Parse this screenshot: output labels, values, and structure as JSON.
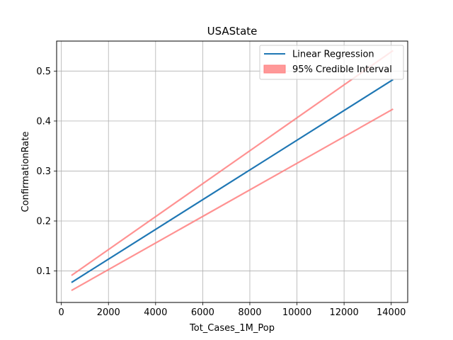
{
  "chart_data": {
    "type": "line",
    "title": "USAState",
    "xlabel": "Tot_Cases_1M_Pop",
    "ylabel": "ConfirmationRate",
    "xlim": [
      -200,
      14700
    ],
    "ylim": [
      0.037,
      0.56
    ],
    "xticks": [
      0,
      2000,
      4000,
      6000,
      8000,
      10000,
      12000,
      14000
    ],
    "xtick_labels": [
      "0",
      "2000",
      "4000",
      "6000",
      "8000",
      "10000",
      "12000",
      "14000"
    ],
    "yticks": [
      0.1,
      0.2,
      0.3,
      0.4,
      0.5
    ],
    "ytick_labels": [
      "0.1",
      "0.2",
      "0.3",
      "0.4",
      "0.5"
    ],
    "grid": true,
    "legend_position": "top-right",
    "series": [
      {
        "name": "Linear Regression",
        "color": "#1f77b4",
        "x": [
          430,
          14080
        ],
        "y": [
          0.077,
          0.483
        ]
      },
      {
        "name": "95% Credible Interval",
        "color": "#ff7f7f",
        "upper": {
          "x": [
            430,
            14080
          ],
          "y": [
            0.091,
            0.541
          ]
        },
        "lower": {
          "x": [
            430,
            14080
          ],
          "y": [
            0.061,
            0.424
          ]
        }
      }
    ],
    "legend": [
      {
        "label": "Linear Regression",
        "kind": "line",
        "color": "#1f77b4"
      },
      {
        "label": "95% Credible Interval",
        "kind": "patch",
        "color": "#ff7f7f"
      }
    ]
  }
}
